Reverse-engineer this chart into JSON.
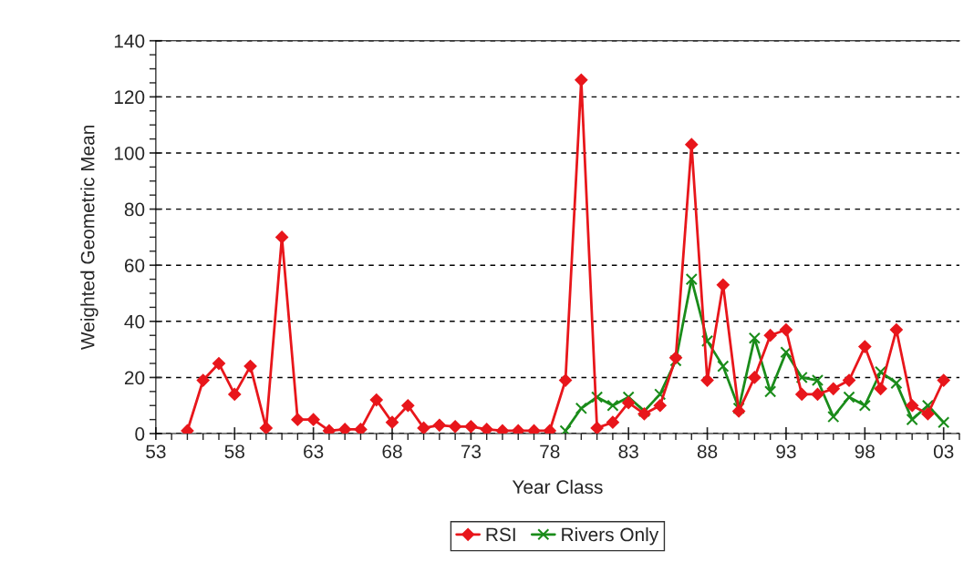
{
  "chart_data": {
    "type": "line",
    "xlabel": "Year Class",
    "ylabel": "Weighted Geometric Mean",
    "xlim": [
      1953,
      2004
    ],
    "ylim": [
      0,
      140
    ],
    "xticks": [
      {
        "value": 1953,
        "label": "53"
      },
      {
        "value": 1958,
        "label": "58"
      },
      {
        "value": 1963,
        "label": "63"
      },
      {
        "value": 1968,
        "label": "68"
      },
      {
        "value": 1973,
        "label": "73"
      },
      {
        "value": 1978,
        "label": "78"
      },
      {
        "value": 1983,
        "label": "83"
      },
      {
        "value": 1988,
        "label": "88"
      },
      {
        "value": 1993,
        "label": "93"
      },
      {
        "value": 1998,
        "label": "98"
      },
      {
        "value": 2003,
        "label": "03"
      }
    ],
    "yticks": [
      0,
      20,
      40,
      60,
      80,
      100,
      120,
      140
    ],
    "grid": "y",
    "legend": "bottom",
    "line_style": "solid",
    "series": [
      {
        "name": "RSI",
        "color": "#e8161b",
        "marker": "diamond",
        "x": [
          1955,
          1956,
          1957,
          1958,
          1959,
          1960,
          1961,
          1962,
          1963,
          1964,
          1965,
          1966,
          1967,
          1968,
          1969,
          1970,
          1971,
          1972,
          1973,
          1974,
          1975,
          1976,
          1977,
          1978,
          1979,
          1980,
          1981,
          1982,
          1983,
          1984,
          1985,
          1986,
          1987,
          1988,
          1989,
          1990,
          1991,
          1992,
          1993,
          1994,
          1995,
          1996,
          1997,
          1998,
          1999,
          2000,
          2001,
          2002,
          2003
        ],
        "values": [
          1,
          19,
          25,
          14,
          24,
          2,
          70,
          5,
          5,
          1,
          1.5,
          1.5,
          12,
          4,
          10,
          2,
          3,
          2.5,
          2.5,
          1.5,
          1,
          1,
          1,
          1,
          19,
          126,
          2,
          4,
          11,
          7,
          10,
          27,
          103,
          19,
          53,
          8,
          20,
          35,
          37,
          14,
          14,
          16,
          19,
          31,
          16,
          37,
          10,
          7,
          19
        ]
      },
      {
        "name": "Rivers Only",
        "color": "#1a8c1a",
        "marker": "cross",
        "x": [
          1979,
          1980,
          1981,
          1982,
          1983,
          1984,
          1985,
          1986,
          1987,
          1988,
          1989,
          1990,
          1991,
          1992,
          1993,
          1994,
          1995,
          1996,
          1997,
          1998,
          1999,
          2000,
          2001,
          2002,
          2003
        ],
        "values": [
          1,
          9,
          13,
          10,
          13,
          8,
          14,
          26,
          55,
          33,
          24,
          9,
          34,
          15,
          29,
          20,
          19,
          6,
          13,
          10,
          22,
          18,
          5,
          10,
          4
        ]
      }
    ]
  }
}
